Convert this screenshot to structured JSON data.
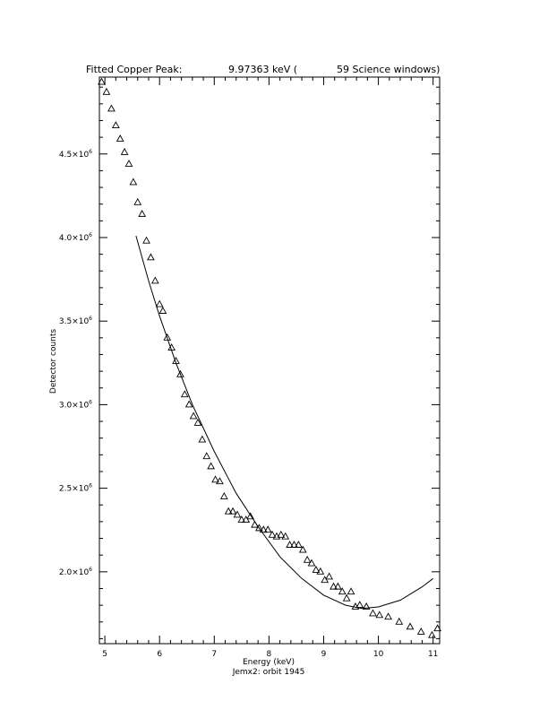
{
  "chart_data": {
    "type": "scatter",
    "title": {
      "prefix": "Fitted Copper Peak:",
      "energy": "9.97363 keV (",
      "windows": "59 Science windows)"
    },
    "xlabel": "Energy (keV)",
    "ylabel": "Detector counts",
    "footer": "Jemx2: orbit 1945",
    "xlim": [
      4.9,
      11.12
    ],
    "ylim": [
      1570000.0,
      4960000.0
    ],
    "grid": false,
    "x_ticks": [
      {
        "value": 5,
        "label": "5"
      },
      {
        "value": 6,
        "label": "6"
      },
      {
        "value": 7,
        "label": "7"
      },
      {
        "value": 8,
        "label": "8"
      },
      {
        "value": 9,
        "label": "9"
      },
      {
        "value": 10,
        "label": "10"
      },
      {
        "value": 11,
        "label": "11"
      }
    ],
    "y_ticks": [
      {
        "value": 2000000.0,
        "mantissa": "2.0×10",
        "exp": "6"
      },
      {
        "value": 2500000.0,
        "mantissa": "2.5×10",
        "exp": "6"
      },
      {
        "value": 3000000.0,
        "mantissa": "3.0×10",
        "exp": "6"
      },
      {
        "value": 3500000.0,
        "mantissa": "3.5×10",
        "exp": "6"
      },
      {
        "value": 4000000.0,
        "mantissa": "4.0×10",
        "exp": "6"
      },
      {
        "value": 4500000.0,
        "mantissa": "4.5×10",
        "exp": "6"
      }
    ],
    "series": [
      {
        "marker": "triangle",
        "points": [
          [
            4.94,
            4930000.0
          ],
          [
            5.03,
            4870000.0
          ],
          [
            5.12,
            4770000.0
          ],
          [
            5.2,
            4670000.0
          ],
          [
            5.28,
            4590000.0
          ],
          [
            5.36,
            4510000.0
          ],
          [
            5.44,
            4440000.0
          ],
          [
            5.52,
            4330000.0
          ],
          [
            5.6,
            4210000.0
          ],
          [
            5.68,
            4140000.0
          ],
          [
            5.76,
            3980000.0
          ],
          [
            5.84,
            3880000.0
          ],
          [
            5.92,
            3740000.0
          ],
          [
            6.0,
            3600000.0
          ],
          [
            6.06,
            3560000.0
          ],
          [
            6.14,
            3400000.0
          ],
          [
            6.22,
            3340000.0
          ],
          [
            6.3,
            3260000.0
          ],
          [
            6.38,
            3180000.0
          ],
          [
            6.46,
            3060000.0
          ],
          [
            6.54,
            3000000.0
          ],
          [
            6.62,
            2930000.0
          ],
          [
            6.7,
            2890000.0
          ],
          [
            6.78,
            2790000.0
          ],
          [
            6.86,
            2690000.0
          ],
          [
            6.94,
            2630000.0
          ],
          [
            7.02,
            2550000.0
          ],
          [
            7.1,
            2540000.0
          ],
          [
            7.18,
            2450000.0
          ],
          [
            7.26,
            2360000.0
          ],
          [
            7.34,
            2360000.0
          ],
          [
            7.42,
            2340000.0
          ],
          [
            7.5,
            2310000.0
          ],
          [
            7.58,
            2310000.0
          ],
          [
            7.66,
            2330000.0
          ],
          [
            7.74,
            2280000.0
          ],
          [
            7.82,
            2260000.0
          ],
          [
            7.9,
            2250000.0
          ],
          [
            7.98,
            2250000.0
          ],
          [
            8.06,
            2220000.0
          ],
          [
            8.14,
            2210000.0
          ],
          [
            8.22,
            2220000.0
          ],
          [
            8.3,
            2210000.0
          ],
          [
            8.38,
            2160000.0
          ],
          [
            8.46,
            2160000.0
          ],
          [
            8.54,
            2160000.0
          ],
          [
            8.62,
            2130000.0
          ],
          [
            8.7,
            2070000.0
          ],
          [
            8.78,
            2050000.0
          ],
          [
            8.86,
            2010000.0
          ],
          [
            8.94,
            2000000.0
          ],
          [
            9.02,
            1950000.0
          ],
          [
            9.1,
            1970000.0
          ],
          [
            9.18,
            1910000.0
          ],
          [
            9.26,
            1910000.0
          ],
          [
            9.34,
            1880000.0
          ],
          [
            9.42,
            1840000.0
          ],
          [
            9.5,
            1880000.0
          ],
          [
            9.58,
            1790000.0
          ],
          [
            9.66,
            1800000.0
          ],
          [
            9.78,
            1790000.0
          ],
          [
            9.9,
            1750000.0
          ],
          [
            10.02,
            1740000.0
          ],
          [
            10.18,
            1730000.0
          ],
          [
            10.38,
            1700000.0
          ],
          [
            10.58,
            1670000.0
          ],
          [
            10.78,
            1640000.0
          ],
          [
            10.98,
            1620000.0
          ],
          [
            11.08,
            1660000.0
          ]
        ]
      },
      {
        "marker": "line",
        "points": [
          [
            5.57,
            4010000.0
          ],
          [
            5.8,
            3740000.0
          ],
          [
            6.0,
            3530000.0
          ],
          [
            6.3,
            3250000.0
          ],
          [
            6.6,
            3000000.0
          ],
          [
            7.0,
            2720000.0
          ],
          [
            7.4,
            2470000.0
          ],
          [
            7.8,
            2270000.0
          ],
          [
            8.2,
            2090000.0
          ],
          [
            8.6,
            1960000.0
          ],
          [
            9.0,
            1860000.0
          ],
          [
            9.4,
            1800000.0
          ],
          [
            9.7,
            1780000.0
          ],
          [
            10.0,
            1790000.0
          ],
          [
            10.4,
            1830000.0
          ],
          [
            10.8,
            1910000.0
          ],
          [
            11.0,
            1960000.0
          ]
        ]
      }
    ]
  }
}
